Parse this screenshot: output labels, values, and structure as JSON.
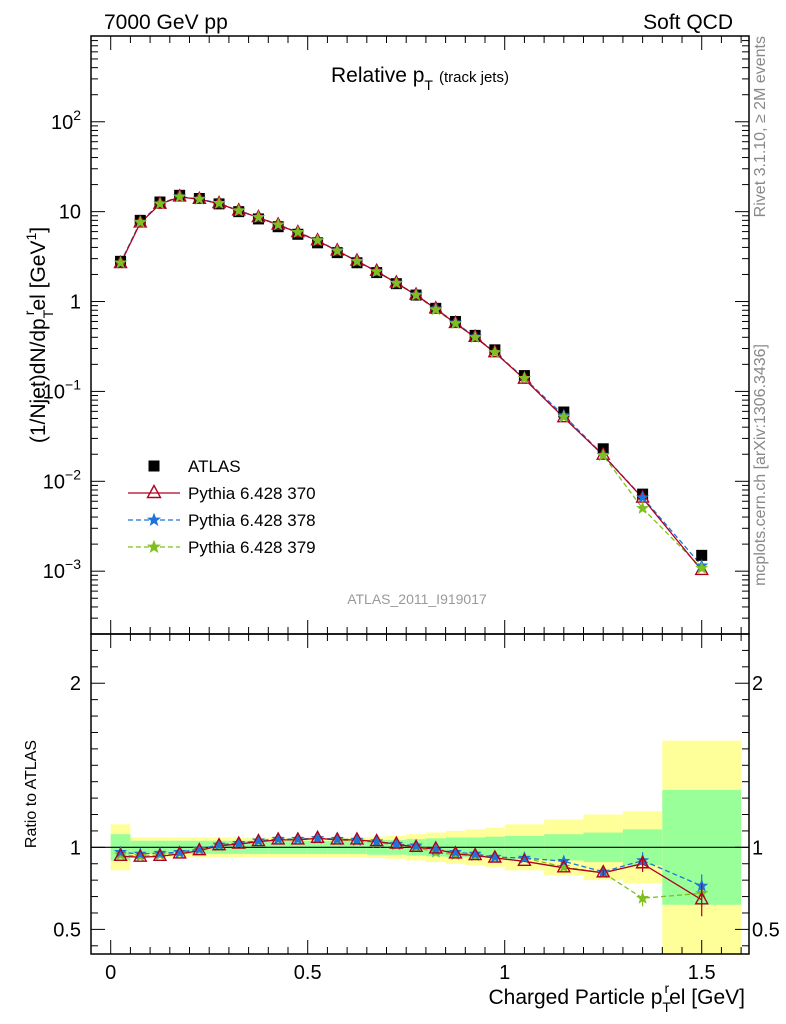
{
  "header": {
    "left": "7000 GeV pp",
    "right": "Soft QCD"
  },
  "side_labels": {
    "top": "Rivet 3.1.10, ≥ 2M events",
    "bottom": "mcplots.cern.ch [arXiv:1306.3436]"
  },
  "analysis_id": "ATLAS_2011_I919017",
  "chart_data": [
    {
      "type": "line",
      "panel": "main",
      "title": "Relative p_T (track jets)",
      "title_main": "Relative p",
      "title_sub": "T",
      "title_suffix": "(track jets)",
      "ylabel": "(1/Njet)dN/dp_T^rel [GeV^-1]",
      "yscale": "log",
      "ylim": [
        0.0002,
        900
      ],
      "xlim": [
        -0.05,
        1.62
      ],
      "yticks": [
        "10^-3",
        "10^-2",
        "10^-1",
        "1",
        "10",
        "10^2"
      ],
      "legend_position": "left",
      "x": [
        0.025,
        0.075,
        0.125,
        0.175,
        0.225,
        0.275,
        0.325,
        0.375,
        0.425,
        0.475,
        0.525,
        0.575,
        0.625,
        0.675,
        0.725,
        0.775,
        0.825,
        0.875,
        0.925,
        0.975,
        1.05,
        1.15,
        1.25,
        1.35,
        1.5
      ],
      "series": [
        {
          "name": "ATLAS",
          "color": "#000000",
          "marker": "square",
          "values": [
            2.8,
            8.0,
            12.8,
            15.2,
            14.0,
            12.2,
            10.0,
            8.3,
            6.8,
            5.6,
            4.5,
            3.5,
            2.7,
            2.1,
            1.58,
            1.18,
            0.84,
            0.6,
            0.42,
            0.29,
            0.15,
            0.059,
            0.023,
            0.0072,
            0.0015
          ]
        },
        {
          "name": "Pythia 6.428 370",
          "color": "#b00020",
          "marker": "triangle",
          "dash": "",
          "values": [
            2.65,
            7.5,
            12.1,
            14.6,
            13.7,
            12.3,
            10.2,
            8.6,
            7.1,
            5.85,
            4.75,
            3.66,
            2.82,
            2.17,
            1.61,
            1.18,
            0.83,
            0.57,
            0.4,
            0.27,
            0.137,
            0.051,
            0.0195,
            0.0065,
            0.00102
          ]
        },
        {
          "name": "Pythia 6.428 378",
          "color": "#1e74d8",
          "marker": "star",
          "dash": "5,3",
          "values": [
            2.7,
            7.7,
            12.3,
            14.7,
            13.8,
            12.4,
            10.25,
            8.65,
            7.15,
            5.9,
            4.78,
            3.68,
            2.82,
            2.16,
            1.61,
            1.19,
            0.83,
            0.58,
            0.405,
            0.272,
            0.14,
            0.054,
            0.0196,
            0.0066,
            0.00115
          ]
        },
        {
          "name": "Pythia 6.428 379",
          "color": "#7fbf1f",
          "marker": "star",
          "dash": "5,3",
          "values": [
            2.7,
            7.6,
            12.2,
            14.6,
            13.8,
            12.4,
            10.25,
            8.65,
            7.15,
            5.9,
            4.78,
            3.66,
            2.81,
            2.15,
            1.6,
            1.18,
            0.81,
            0.57,
            0.4,
            0.272,
            0.14,
            0.052,
            0.0194,
            0.005,
            0.00108
          ]
        }
      ]
    },
    {
      "type": "line",
      "panel": "ratio",
      "ylabel": "Ratio to ATLAS",
      "xlabel": "Charged Particle p_T^rel [GeV]",
      "xlabel_main": "Charged Particle p",
      "xlabel_sub": "T",
      "xlabel_sup": "r",
      "xlabel_suffix": "el [GeV]",
      "ylim": [
        0.35,
        2.3
      ],
      "xlim": [
        -0.05,
        1.62
      ],
      "xticks": [
        "0",
        "0.5",
        "1",
        "1.5"
      ],
      "xtick_values": [
        0,
        0.5,
        1,
        1.5
      ],
      "yticks": [
        "0.5",
        "1",
        "2"
      ],
      "ytick_values": [
        0.5,
        1,
        2
      ],
      "bins": [
        [
          0,
          0.05
        ],
        [
          0.05,
          0.1
        ],
        [
          0.1,
          0.15
        ],
        [
          0.15,
          0.2
        ],
        [
          0.2,
          0.25
        ],
        [
          0.25,
          0.3
        ],
        [
          0.3,
          0.35
        ],
        [
          0.35,
          0.4
        ],
        [
          0.4,
          0.45
        ],
        [
          0.45,
          0.5
        ],
        [
          0.5,
          0.55
        ],
        [
          0.55,
          0.6
        ],
        [
          0.6,
          0.65
        ],
        [
          0.65,
          0.7
        ],
        [
          0.7,
          0.75
        ],
        [
          0.75,
          0.8
        ],
        [
          0.8,
          0.85
        ],
        [
          0.85,
          0.9
        ],
        [
          0.9,
          0.95
        ],
        [
          0.95,
          1.0
        ],
        [
          1.0,
          1.1
        ],
        [
          1.1,
          1.2
        ],
        [
          1.2,
          1.3
        ],
        [
          1.3,
          1.4
        ],
        [
          1.4,
          1.6
        ]
      ],
      "band_stat": [
        0.08,
        0.04,
        0.04,
        0.04,
        0.04,
        0.04,
        0.04,
        0.04,
        0.04,
        0.04,
        0.04,
        0.04,
        0.04,
        0.045,
        0.045,
        0.05,
        0.055,
        0.06,
        0.06,
        0.065,
        0.07,
        0.08,
        0.09,
        0.11,
        0.35
      ],
      "band_total": [
        0.14,
        0.06,
        0.06,
        0.06,
        0.06,
        0.06,
        0.06,
        0.06,
        0.06,
        0.06,
        0.06,
        0.06,
        0.06,
        0.065,
        0.07,
        0.08,
        0.09,
        0.1,
        0.11,
        0.12,
        0.14,
        0.17,
        0.2,
        0.22,
        0.65
      ],
      "band_total_colour": "#ffff99",
      "band_stat_colour": "#99ff99",
      "x": [
        0.025,
        0.075,
        0.125,
        0.175,
        0.225,
        0.275,
        0.325,
        0.375,
        0.425,
        0.475,
        0.525,
        0.575,
        0.625,
        0.675,
        0.725,
        0.775,
        0.825,
        0.875,
        0.925,
        0.975,
        1.05,
        1.15,
        1.25,
        1.35,
        1.5
      ],
      "series": [
        {
          "name": "Pythia 6.428 370",
          "color": "#b00020",
          "marker": "triangle",
          "dash": "",
          "values": [
            0.945,
            0.94,
            0.945,
            0.96,
            0.98,
            1.01,
            1.02,
            1.035,
            1.045,
            1.045,
            1.055,
            1.045,
            1.045,
            1.035,
            1.02,
            1.0,
            0.99,
            0.96,
            0.95,
            0.935,
            0.915,
            0.875,
            0.845,
            0.9,
            0.68
          ],
          "err": [
            0,
            0,
            0,
            0,
            0,
            0,
            0,
            0,
            0,
            0,
            0,
            0,
            0,
            0,
            0,
            0,
            0,
            0,
            0,
            0,
            0,
            0,
            0.02,
            0.05,
            0.1
          ]
        },
        {
          "name": "Pythia 6.428 378",
          "color": "#1e74d8",
          "marker": "star",
          "dash": "5,3",
          "values": [
            0.97,
            0.96,
            0.965,
            0.97,
            0.99,
            1.015,
            1.025,
            1.04,
            1.05,
            1.05,
            1.055,
            1.05,
            1.045,
            1.035,
            1.02,
            1.01,
            0.985,
            0.97,
            0.96,
            0.94,
            0.935,
            0.915,
            0.85,
            0.92,
            0.765
          ],
          "err": [
            0,
            0,
            0,
            0,
            0,
            0,
            0,
            0,
            0,
            0,
            0,
            0,
            0,
            0,
            0,
            0,
            0,
            0,
            0,
            0,
            0,
            0.02,
            0.025,
            0.05,
            0.07
          ]
        },
        {
          "name": "Pythia 6.428 379",
          "color": "#7fbf1f",
          "marker": "star",
          "dash": "5,3",
          "values": [
            0.955,
            0.945,
            0.955,
            0.965,
            0.985,
            1.01,
            1.025,
            1.04,
            1.05,
            1.05,
            1.055,
            1.045,
            1.04,
            1.03,
            1.015,
            1.0,
            0.97,
            0.955,
            0.95,
            0.94,
            0.935,
            0.88,
            0.845,
            0.69,
            0.72
          ],
          "err": [
            0,
            0,
            0,
            0,
            0,
            0,
            0,
            0,
            0,
            0,
            0,
            0,
            0,
            0,
            0,
            0,
            0,
            0,
            0,
            0,
            0,
            0.02,
            0.02,
            0.05,
            0.08
          ]
        }
      ]
    }
  ]
}
